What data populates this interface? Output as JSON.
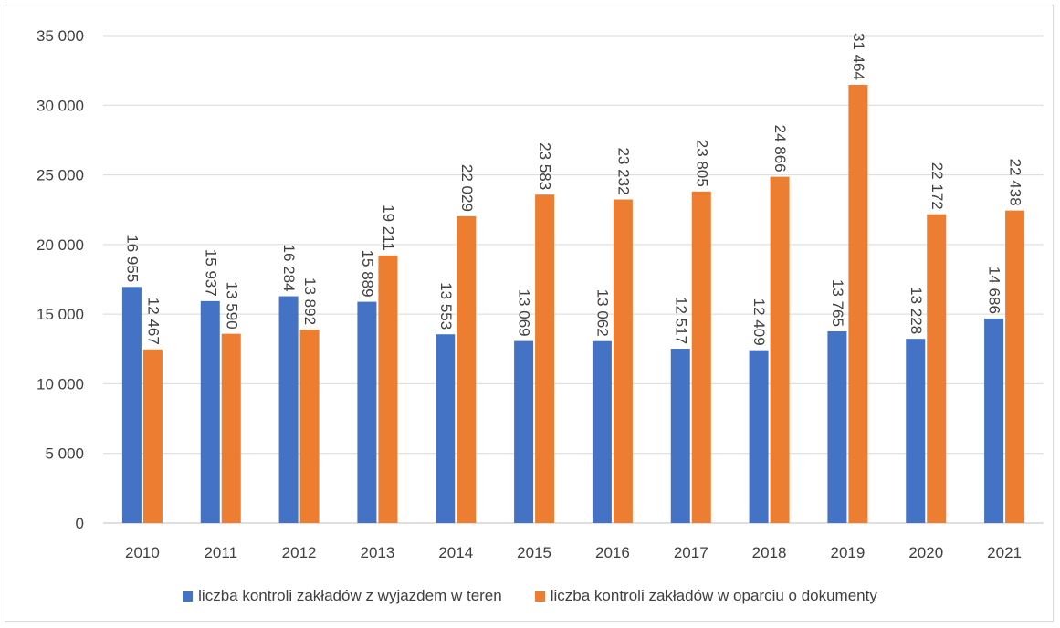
{
  "chart_data": {
    "type": "bar",
    "title": "",
    "xlabel": "",
    "ylabel": "",
    "categories": [
      "2010",
      "2011",
      "2012",
      "2013",
      "2014",
      "2015",
      "2016",
      "2017",
      "2018",
      "2019",
      "2020",
      "2021"
    ],
    "ylim": [
      0,
      35000
    ],
    "yticks": [
      0,
      5000,
      10000,
      15000,
      20000,
      25000,
      30000,
      35000
    ],
    "ytick_labels": [
      "0",
      "5 000",
      "10 000",
      "15 000",
      "20 000",
      "25 000",
      "30 000",
      "35 000"
    ],
    "grid": true,
    "legend_position": "bottom",
    "series": [
      {
        "name": "liczba kontroli zakładów z wyjazdem w teren",
        "color": "#4472c4",
        "values": [
          16955,
          15937,
          16284,
          15889,
          13553,
          13069,
          13062,
          12517,
          12409,
          13765,
          13228,
          14686
        ],
        "labels": [
          "16 955",
          "15 937",
          "16 284",
          "15 889",
          "13 553",
          "13 069",
          "13 062",
          "12 517",
          "12 409",
          "13 765",
          "13 228",
          "14 686"
        ]
      },
      {
        "name": "liczba kontroli zakładów w oparciu o dokumenty",
        "color": "#ed7d31",
        "values": [
          12467,
          13590,
          13892,
          19211,
          22029,
          23583,
          23232,
          23805,
          24866,
          31464,
          22172,
          22438
        ],
        "labels": [
          "12 467",
          "13 590",
          "13 892",
          "19 211",
          "22 029",
          "23 583",
          "23 232",
          "23 805",
          "24 866",
          "31 464",
          "22 172",
          "22 438"
        ]
      }
    ]
  }
}
